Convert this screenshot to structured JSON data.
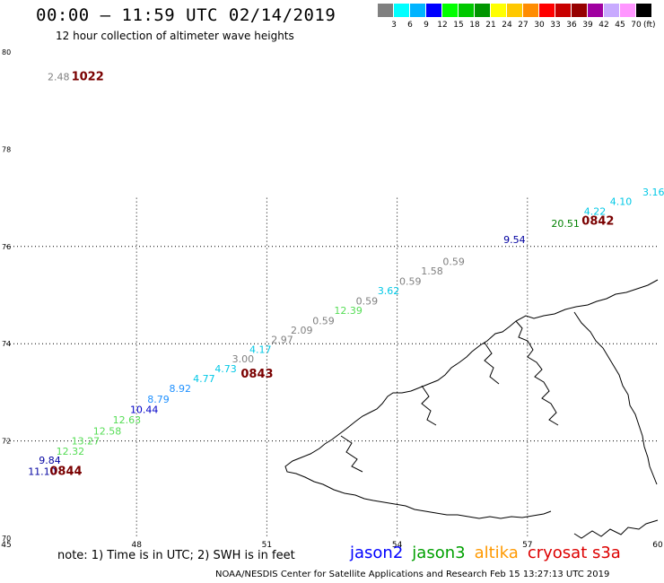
{
  "header": {
    "title": "00:00 – 11:59 UTC 02/14/2019",
    "subtitle": "12 hour collection of altimeter wave heights"
  },
  "legend": {
    "unit": "(ft)",
    "colors": [
      "#808080",
      "#00ffff",
      "#00b4ff",
      "#0000ff",
      "#00ff00",
      "#00c800",
      "#009600",
      "#ffff00",
      "#ffc800",
      "#ff8c00",
      "#ff0000",
      "#c80000",
      "#960000",
      "#a000a0",
      "#c8aaff",
      "#ff96ff",
      "#000000"
    ],
    "labels": [
      "3",
      "6",
      "9",
      "12",
      "15",
      "18",
      "21",
      "24",
      "27",
      "30",
      "33",
      "36",
      "39",
      "42",
      "45",
      "70"
    ]
  },
  "map_data": {
    "lon_range": [
      45,
      60
    ],
    "lat_range": [
      70,
      80
    ],
    "lon_ticks": [
      "45",
      "48",
      "51",
      "54",
      "57",
      "60"
    ],
    "lat_ticks": [
      "80",
      "78",
      "76",
      "74",
      "72",
      "70"
    ],
    "grid": true,
    "observations": [
      {
        "lon": 45.95,
        "lat": 79.42,
        "value": "2.48",
        "color": "#808080"
      },
      {
        "lon": 45.5,
        "lat": 71.3,
        "value": "11.10",
        "color": "#0000a0"
      },
      {
        "lon": 45.75,
        "lat": 71.53,
        "value": "9.84",
        "color": "#0000a0"
      },
      {
        "lon": 46.15,
        "lat": 71.72,
        "value": "12.32",
        "color": "#55dd55"
      },
      {
        "lon": 46.5,
        "lat": 71.93,
        "value": "13.27",
        "color": "#55dd55"
      },
      {
        "lon": 47.0,
        "lat": 72.13,
        "value": "12.58",
        "color": "#55dd55"
      },
      {
        "lon": 47.45,
        "lat": 72.36,
        "value": "12.63",
        "color": "#55dd55"
      },
      {
        "lon": 47.85,
        "lat": 72.57,
        "value": "10.44",
        "color": "#0000c8"
      },
      {
        "lon": 48.25,
        "lat": 72.79,
        "value": "8.79",
        "color": "#1e90ff"
      },
      {
        "lon": 48.75,
        "lat": 73.01,
        "value": "8.92",
        "color": "#1e90ff"
      },
      {
        "lon": 49.3,
        "lat": 73.21,
        "value": "4.77",
        "color": "#00c8e6"
      },
      {
        "lon": 49.8,
        "lat": 73.41,
        "value": "4.73",
        "color": "#00c8e6"
      },
      {
        "lon": 50.2,
        "lat": 73.62,
        "value": "3.00",
        "color": "#808080"
      },
      {
        "lon": 50.6,
        "lat": 73.81,
        "value": "4.17",
        "color": "#00c8e6"
      },
      {
        "lon": 51.1,
        "lat": 74.01,
        "value": "2.97",
        "color": "#808080"
      },
      {
        "lon": 51.55,
        "lat": 74.21,
        "value": "2.09",
        "color": "#808080"
      },
      {
        "lon": 52.05,
        "lat": 74.4,
        "value": "0.59",
        "color": "#808080"
      },
      {
        "lon": 52.55,
        "lat": 74.61,
        "value": "12.39",
        "color": "#55dd55"
      },
      {
        "lon": 53.05,
        "lat": 74.81,
        "value": "0.59",
        "color": "#808080"
      },
      {
        "lon": 53.55,
        "lat": 75.02,
        "value": "3.62",
        "color": "#00c8e6"
      },
      {
        "lon": 54.05,
        "lat": 75.21,
        "value": "0.59",
        "color": "#808080"
      },
      {
        "lon": 54.55,
        "lat": 75.42,
        "value": "1.58",
        "color": "#808080"
      },
      {
        "lon": 55.05,
        "lat": 75.62,
        "value": "0.59",
        "color": "#808080"
      },
      {
        "lon": 56.45,
        "lat": 76.07,
        "value": "9.54",
        "color": "#0000a0"
      },
      {
        "lon": 57.55,
        "lat": 76.4,
        "value": "20.51",
        "color": "#008000"
      },
      {
        "lon": 58.3,
        "lat": 76.65,
        "value": "4.22",
        "color": "#00c8e6"
      },
      {
        "lon": 58.9,
        "lat": 76.85,
        "value": "4.10",
        "color": "#00c8e6"
      },
      {
        "lon": 59.65,
        "lat": 77.05,
        "value": "3.16",
        "color": "#00c8e6"
      }
    ],
    "times": [
      {
        "lon": 46.5,
        "lat": 79.42,
        "value": "1022"
      },
      {
        "lon": 46.0,
        "lat": 71.3,
        "value": "0844"
      },
      {
        "lon": 50.4,
        "lat": 73.3,
        "value": "0843"
      },
      {
        "lon": 58.25,
        "lat": 76.45,
        "value": "0842"
      }
    ]
  },
  "footer": {
    "note": "note:  1) Time is in UTC;  2) SWH is in feet",
    "satellites": [
      {
        "name": "jason2",
        "color": "#0000ff"
      },
      {
        "name": "jason3",
        "color": "#00a000"
      },
      {
        "name": "altika",
        "color": "#ff9900"
      },
      {
        "name": "cryosat s3a",
        "color": "#dd0000"
      }
    ],
    "credit": "NOAA/NESDIS Center for Satellite Applications and Research     Feb 15 13:27:13 UTC 2019"
  }
}
